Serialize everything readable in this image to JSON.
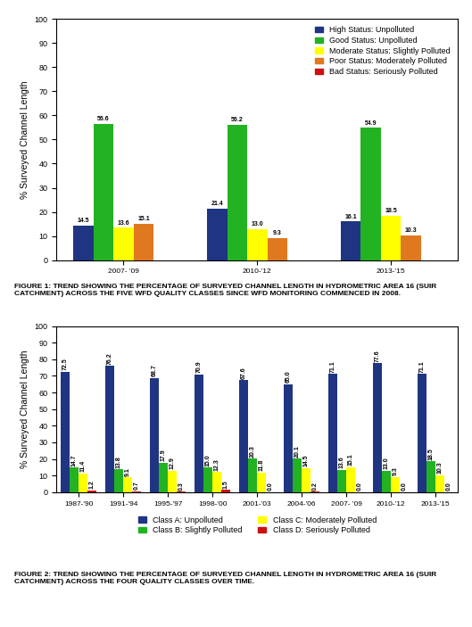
{
  "chart_data": [
    {
      "type": "bar",
      "title": "FIGURE 1: TREND SHOWING THE PERCENTAGE OF SURVEYED CHANNEL LENGTH IN HYDROMETRIC AREA 16 (SUIR\nCATCHMENT) ACROSS THE FIVE WFD QUALITY CLASSES SINCE WFD MONITORING COMMENCED IN 2008.",
      "categories": [
        "2007- '09",
        "2010-'12",
        "2013-'15"
      ],
      "series": [
        {
          "name": "High Status: Unpolluted",
          "color": "#1f3582",
          "values": [
            14.5,
            21.4,
            16.1
          ]
        },
        {
          "name": "Good Status: Unpolluted",
          "color": "#22b222",
          "values": [
            56.6,
            56.2,
            54.9
          ]
        },
        {
          "name": "Moderate Status: Slightly Polluted",
          "color": "#ffff00",
          "values": [
            13.6,
            13.0,
            18.5
          ]
        },
        {
          "name": "Poor Status: Moderately Polluted",
          "color": "#e07820",
          "values": [
            15.1,
            9.3,
            10.3
          ]
        },
        {
          "name": "Bad Status: Seriously Polluted",
          "color": "#cc1111",
          "values": [
            0.0,
            0.0,
            0.0
          ],
          "value_labels": [
            null,
            null,
            null
          ]
        }
      ],
      "ylabel": "% Surveyed Channel Length",
      "ylim": [
        0,
        100
      ],
      "yticks": [
        0,
        10,
        20,
        30,
        40,
        50,
        60,
        70,
        80,
        90,
        100
      ],
      "legend": "upper right",
      "data_labels": true
    },
    {
      "type": "bar",
      "title": "FIGURE 2: TREND SHOWING THE PERCENTAGE OF SURVEYED CHANNEL LENGTH IN HYDROMETRIC AREA 16 (SUIR\nCATCHMENT) ACROSS THE FOUR QUALITY CLASSES OVER TIME.",
      "categories": [
        "1987-'90",
        "1991-'94",
        "1995-'97",
        "1998-'00",
        "2001-'03",
        "2004-'06",
        "2007- '09",
        "2010-'12",
        "2013-'15"
      ],
      "series": [
        {
          "name": "Class A: Unpolluted",
          "color": "#1f3582",
          "values": [
            72.5,
            76.2,
            68.7,
            70.9,
            67.6,
            65.0,
            71.1,
            77.6,
            71.1
          ]
        },
        {
          "name": "Class B: Slightly Polluted",
          "color": "#22b222",
          "values": [
            14.7,
            13.8,
            17.9,
            15.0,
            20.3,
            20.1,
            13.6,
            13.0,
            18.5
          ]
        },
        {
          "name": "Class C: Moderately Polluted",
          "color": "#ffff00",
          "values": [
            11.4,
            9.1,
            12.9,
            12.3,
            11.8,
            14.5,
            15.1,
            9.3,
            10.3
          ]
        },
        {
          "name": "Class D: Seriously Polluted",
          "color": "#cc1111",
          "values": [
            1.2,
            0.7,
            0.3,
            1.5,
            0.0,
            0.2,
            0.0,
            0.0,
            0.0
          ]
        }
      ],
      "ylabel": "% Surveyed Channel Length",
      "ylim": [
        0,
        100
      ],
      "yticks": [
        0,
        10,
        20,
        30,
        40,
        50,
        60,
        70,
        80,
        90,
        100
      ],
      "legend": "lower center",
      "data_labels": true
    }
  ]
}
